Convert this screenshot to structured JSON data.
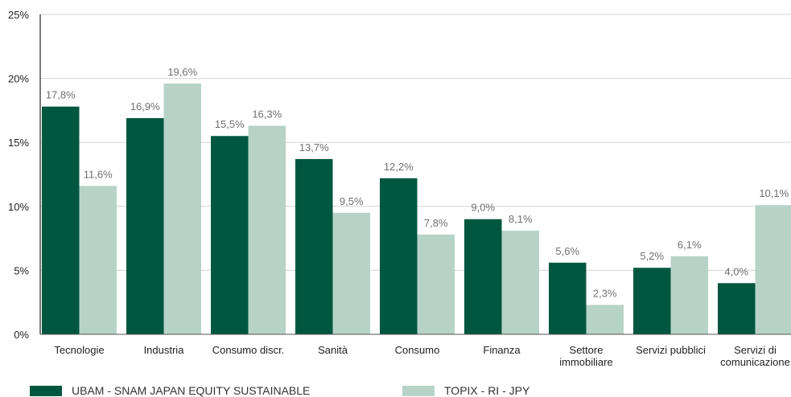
{
  "chart_data": {
    "type": "bar",
    "categories": [
      [
        "Tecnologie"
      ],
      [
        "Industria"
      ],
      [
        "Consumo discr."
      ],
      [
        "Sanità"
      ],
      [
        "Consumo"
      ],
      [
        "Finanza"
      ],
      [
        "Settore",
        "immobiliare"
      ],
      [
        "Servizi pubblici"
      ],
      [
        "Servizi di",
        "comunicazione"
      ]
    ],
    "series": [
      {
        "name": "UBAM - SNAM JAPAN EQUITY SUSTAINABLE",
        "color": "#00573f",
        "values": [
          17.8,
          16.9,
          15.5,
          13.7,
          12.2,
          9.0,
          5.6,
          5.2,
          4.0
        ],
        "labels": [
          "17,8%",
          "16,9%",
          "15,5%",
          "13,7%",
          "12,2%",
          "9,0%",
          "5,6%",
          "5,2%",
          "4,0%"
        ]
      },
      {
        "name": "TOPIX - RI - JPY",
        "color": "#b7d3c8",
        "values": [
          11.6,
          19.6,
          16.3,
          9.5,
          7.8,
          8.1,
          2.3,
          6.1,
          10.1
        ],
        "labels": [
          "11,6%",
          "19,6%",
          "16,3%",
          "9,5%",
          "7,8%",
          "8,1%",
          "2,3%",
          "6,1%",
          "10,1%"
        ]
      }
    ],
    "ylim": [
      0,
      25
    ],
    "yticks": [
      0,
      5,
      10,
      15,
      20,
      25
    ],
    "ytick_labels": [
      "0%",
      "5%",
      "10%",
      "15%",
      "20%",
      "25%"
    ],
    "grid": true,
    "legend_position": "bottom"
  }
}
